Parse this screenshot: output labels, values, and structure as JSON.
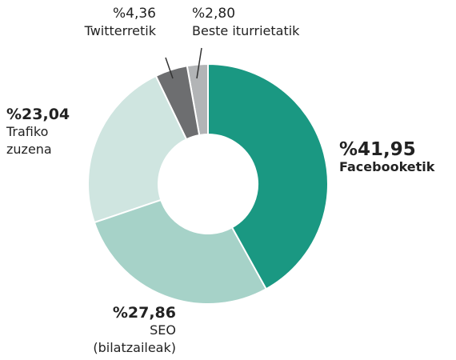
{
  "chart_data": {
    "type": "donut",
    "categories": [
      "Facebooketik",
      "SEO (bilatzaileak)",
      "Trafiko zuzena",
      "Twitterretik",
      "Beste iturrietatik"
    ],
    "values": [
      41.95,
      27.86,
      23.04,
      4.36,
      2.8
    ],
    "value_labels": [
      "%41,95",
      "%27,86",
      "%23,04",
      "%4,36",
      "%2,80"
    ],
    "colors": [
      "#1a9882",
      "#a6d2c8",
      "#cfe5e0",
      "#6d6e70",
      "#b2b4b6"
    ]
  }
}
